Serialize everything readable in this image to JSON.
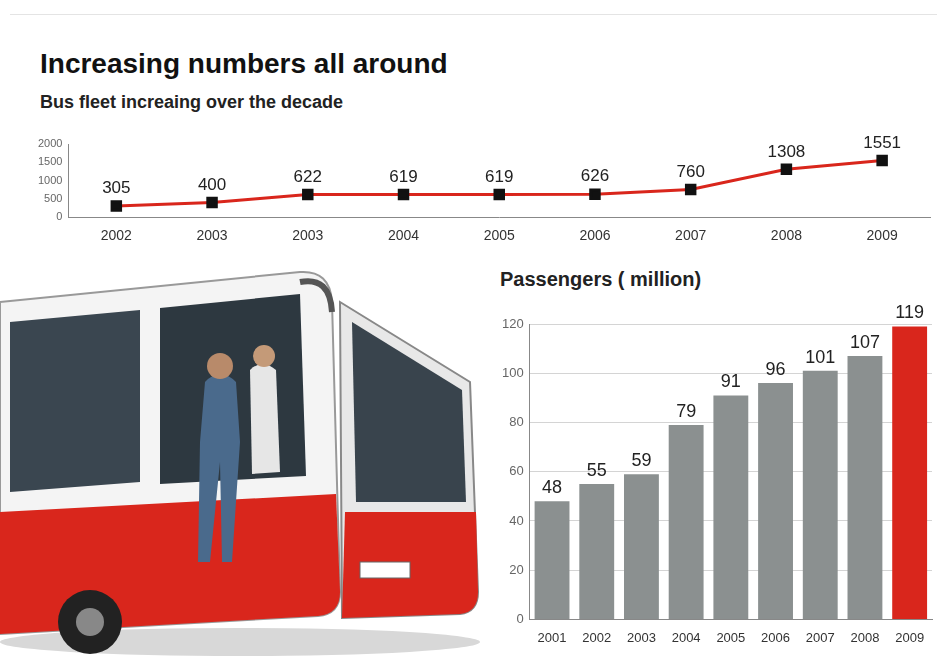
{
  "chart_data": [
    {
      "type": "line",
      "title": "Increasing numbers all around",
      "subtitle": "Bus fleet increaing over the decade",
      "categories": [
        "2002",
        "2003",
        "2003",
        "2004",
        "2005",
        "2006",
        "2007",
        "2008",
        "2009"
      ],
      "values": [
        305,
        400,
        622,
        619,
        619,
        626,
        760,
        1308,
        1551
      ],
      "color": "#d9261c",
      "marker": "square",
      "ylim": [
        0,
        2000
      ],
      "yticks": [
        0,
        500,
        1000,
        1500,
        2000
      ],
      "grid": false,
      "data_labels": true
    },
    {
      "type": "bar",
      "title": "Passengers ( million)",
      "categories": [
        "2001",
        "2002",
        "2003",
        "2004",
        "2005",
        "2006",
        "2007",
        "2008",
        "2009"
      ],
      "values": [
        48,
        55,
        59,
        79,
        91,
        96,
        101,
        107,
        119
      ],
      "colors": [
        "#8b9090",
        "#8b9090",
        "#8b9090",
        "#8b9090",
        "#8b9090",
        "#8b9090",
        "#8b9090",
        "#8b9090",
        "#d9261c"
      ],
      "ylim": [
        0,
        120
      ],
      "yticks": [
        0,
        20,
        40,
        60,
        80,
        100,
        120
      ],
      "grid": true,
      "data_labels": true
    }
  ]
}
